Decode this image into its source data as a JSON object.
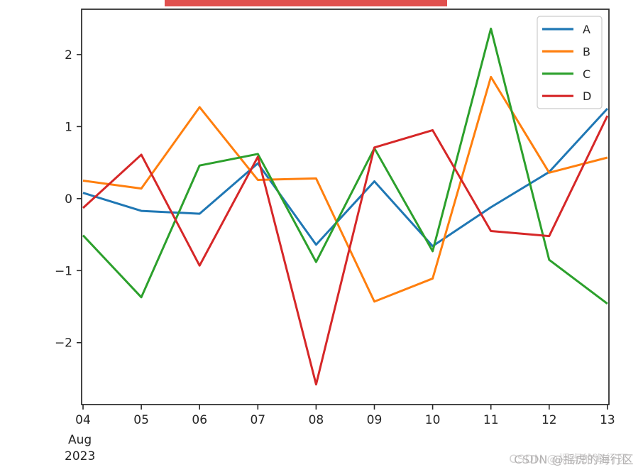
{
  "figure": {
    "kind": "matplotlib-line-plot-screenshot"
  },
  "topbar": {
    "color": "#e0504e"
  },
  "chart_data": {
    "type": "line",
    "x_labels": [
      "04",
      "05",
      "06",
      "07",
      "08",
      "09",
      "10",
      "11",
      "12",
      "13"
    ],
    "x_secondary_labels": [
      "Aug",
      "2023"
    ],
    "y_tick_values": [
      2,
      1,
      0,
      -1,
      -2
    ],
    "y_tick_labels": [
      "2",
      "1",
      "0",
      "−1",
      "−2"
    ],
    "ylim": [
      -2.86,
      2.63
    ],
    "grid": false,
    "legend_position": "upper right",
    "axis_color": "#262626",
    "series": [
      {
        "name": "A",
        "color": "#1f77b4",
        "values": [
          0.08,
          -0.17,
          -0.21,
          0.49,
          -0.64,
          0.24,
          -0.66,
          -0.12,
          0.37,
          1.25
        ]
      },
      {
        "name": "B",
        "color": "#ff7f0e",
        "values": [
          0.25,
          0.14,
          1.27,
          0.26,
          0.28,
          -1.43,
          -1.11,
          1.69,
          0.36,
          0.57
        ]
      },
      {
        "name": "C",
        "color": "#2ca02c",
        "values": [
          -0.51,
          -1.37,
          0.46,
          0.62,
          -0.88,
          0.7,
          -0.73,
          2.36,
          -0.85,
          -1.46
        ]
      },
      {
        "name": "D",
        "color": "#d62728",
        "values": [
          -0.13,
          0.61,
          -0.93,
          0.58,
          -2.58,
          0.71,
          0.95,
          -0.45,
          -0.52,
          1.15
        ]
      }
    ]
  },
  "legend": {
    "entries": [
      "A",
      "B",
      "C",
      "D"
    ]
  },
  "watermark": {
    "text": "CSDN @摇虎的海行区"
  }
}
